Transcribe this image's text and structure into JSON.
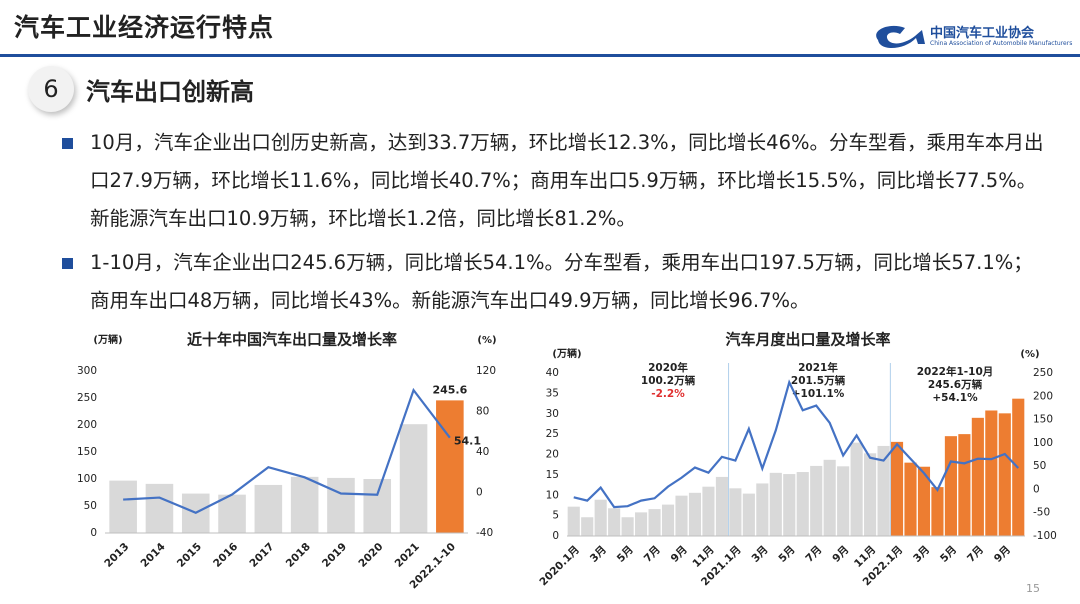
{
  "header": {
    "title": "汽车工业经济运行特点",
    "logo_name": "中国汽车工业协会",
    "logo_subtitle": "China Association of Automobile Manufacturers"
  },
  "section": {
    "number": "6",
    "title": "汽车出口创新高"
  },
  "bullets": [
    "10月，汽车企业出口创历史新高，达到33.7万辆，环比增长12.3%，同比增长46%。分车型看，乘用车本月出口27.9万辆，环比增长11.6%，同比增长40.7%；商用车出口5.9万辆，环比增长15.5%，同比增长77.5%。新能源汽车出口10.9万辆，环比增长1.2倍，同比增长81.2%。",
    "1-10月，汽车企业出口245.6万辆，同比增长54.1%。分车型看，乘用车出口197.5万辆，同比增长57.1%；商用车出口48万辆，同比增长43%。新能源汽车出口49.9万辆，同比增长96.7%。"
  ],
  "chart_data": [
    {
      "type": "bar",
      "title": "近十年中国汽车出口量及增长率",
      "y_unit": "(万辆)",
      "y2_unit": "(%)",
      "categories": [
        "2013",
        "2014",
        "2015",
        "2016",
        "2017",
        "2018",
        "2019",
        "2020",
        "2021",
        "2022.1-10"
      ],
      "ylim": [
        0,
        300
      ],
      "yticks": [
        0,
        50,
        100,
        150,
        200,
        250,
        300
      ],
      "y2lim": [
        -40,
        120
      ],
      "y2ticks": [
        -40,
        0,
        40,
        80,
        120
      ],
      "series": [
        {
          "type": "bar",
          "values": [
            97,
            91,
            73,
            71,
            89,
            104,
            102,
            100,
            201.5,
            245.6
          ],
          "colors": [
            "#d9d9d9",
            "#d9d9d9",
            "#d9d9d9",
            "#d9d9d9",
            "#d9d9d9",
            "#d9d9d9",
            "#d9d9d9",
            "#d9d9d9",
            "#d9d9d9",
            "#ed7d31"
          ],
          "data_label_index": 9
        },
        {
          "type": "line",
          "axis": "y2",
          "color": "#4472c4",
          "values": [
            -7,
            -5,
            -20,
            -2,
            25,
            15,
            -1,
            -2.2,
            101.1,
            54.1
          ],
          "data_label_index": 9
        }
      ]
    },
    {
      "type": "bar",
      "title": "汽车月度出口量及增长率",
      "y_unit": "(万辆)",
      "y2_unit": "(%)",
      "categories": [
        "2020.1月",
        null,
        "3月",
        null,
        "5月",
        null,
        "7月",
        null,
        "9月",
        null,
        "11月",
        null,
        "2021.1月",
        null,
        "3月",
        null,
        "5月",
        null,
        "7月",
        null,
        "9月",
        null,
        "11月",
        null,
        "2022.1月",
        null,
        "3月",
        null,
        "5月",
        null,
        "7月",
        null,
        "9月",
        null
      ],
      "ylim": [
        0,
        40
      ],
      "yticks": [
        0,
        5,
        10,
        15,
        20,
        25,
        30,
        35,
        40
      ],
      "y2lim": [
        -100,
        250
      ],
      "y2ticks": [
        -100,
        -50,
        0,
        50,
        100,
        150,
        200,
        250
      ],
      "annotations": [
        {
          "lines": [
            "2020年",
            "100.2万辆",
            "-2.2%"
          ]
        },
        {
          "lines": [
            "2021年",
            "201.5万辆",
            "+101.1%"
          ]
        },
        {
          "lines": [
            "2022年1-10月",
            "245.6万辆",
            "+54.1%"
          ]
        }
      ],
      "series": [
        {
          "type": "bar",
          "values": [
            7.2,
            4.6,
            8.9,
            6.8,
            4.6,
            5.8,
            6.6,
            7.7,
            9.9,
            10.6,
            12.1,
            14.5,
            11.7,
            10.4,
            12.9,
            15.5,
            15.2,
            15.7,
            17.2,
            18.7,
            17.1,
            22.9,
            20.3,
            22.1,
            23.1,
            18,
            17,
            12,
            24.5,
            25,
            29,
            30.8,
            30.1,
            33.7
          ],
          "colors": [
            "#d9d9d9",
            "#d9d9d9",
            "#d9d9d9",
            "#d9d9d9",
            "#d9d9d9",
            "#d9d9d9",
            "#d9d9d9",
            "#d9d9d9",
            "#d9d9d9",
            "#d9d9d9",
            "#d9d9d9",
            "#d9d9d9",
            "#d9d9d9",
            "#d9d9d9",
            "#d9d9d9",
            "#d9d9d9",
            "#d9d9d9",
            "#d9d9d9",
            "#d9d9d9",
            "#d9d9d9",
            "#d9d9d9",
            "#d9d9d9",
            "#d9d9d9",
            "#d9d9d9",
            "#ed7d31",
            "#ed7d31",
            "#ed7d31",
            "#ed7d31",
            "#ed7d31",
            "#ed7d31",
            "#ed7d31",
            "#ed7d31",
            "#ed7d31",
            "#ed7d31"
          ]
        },
        {
          "type": "line",
          "axis": "y2",
          "color": "#4472c4",
          "values": [
            -17,
            -24,
            4,
            -38,
            -36,
            -24,
            -19,
            6,
            25,
            47,
            36,
            70,
            62,
            130,
            45,
            127,
            230,
            170,
            180,
            143,
            73,
            116,
            68,
            62,
            97,
            66,
            35,
            -1,
            60,
            56,
            66,
            65,
            76,
            46
          ]
        }
      ]
    }
  ],
  "page_number": "15"
}
